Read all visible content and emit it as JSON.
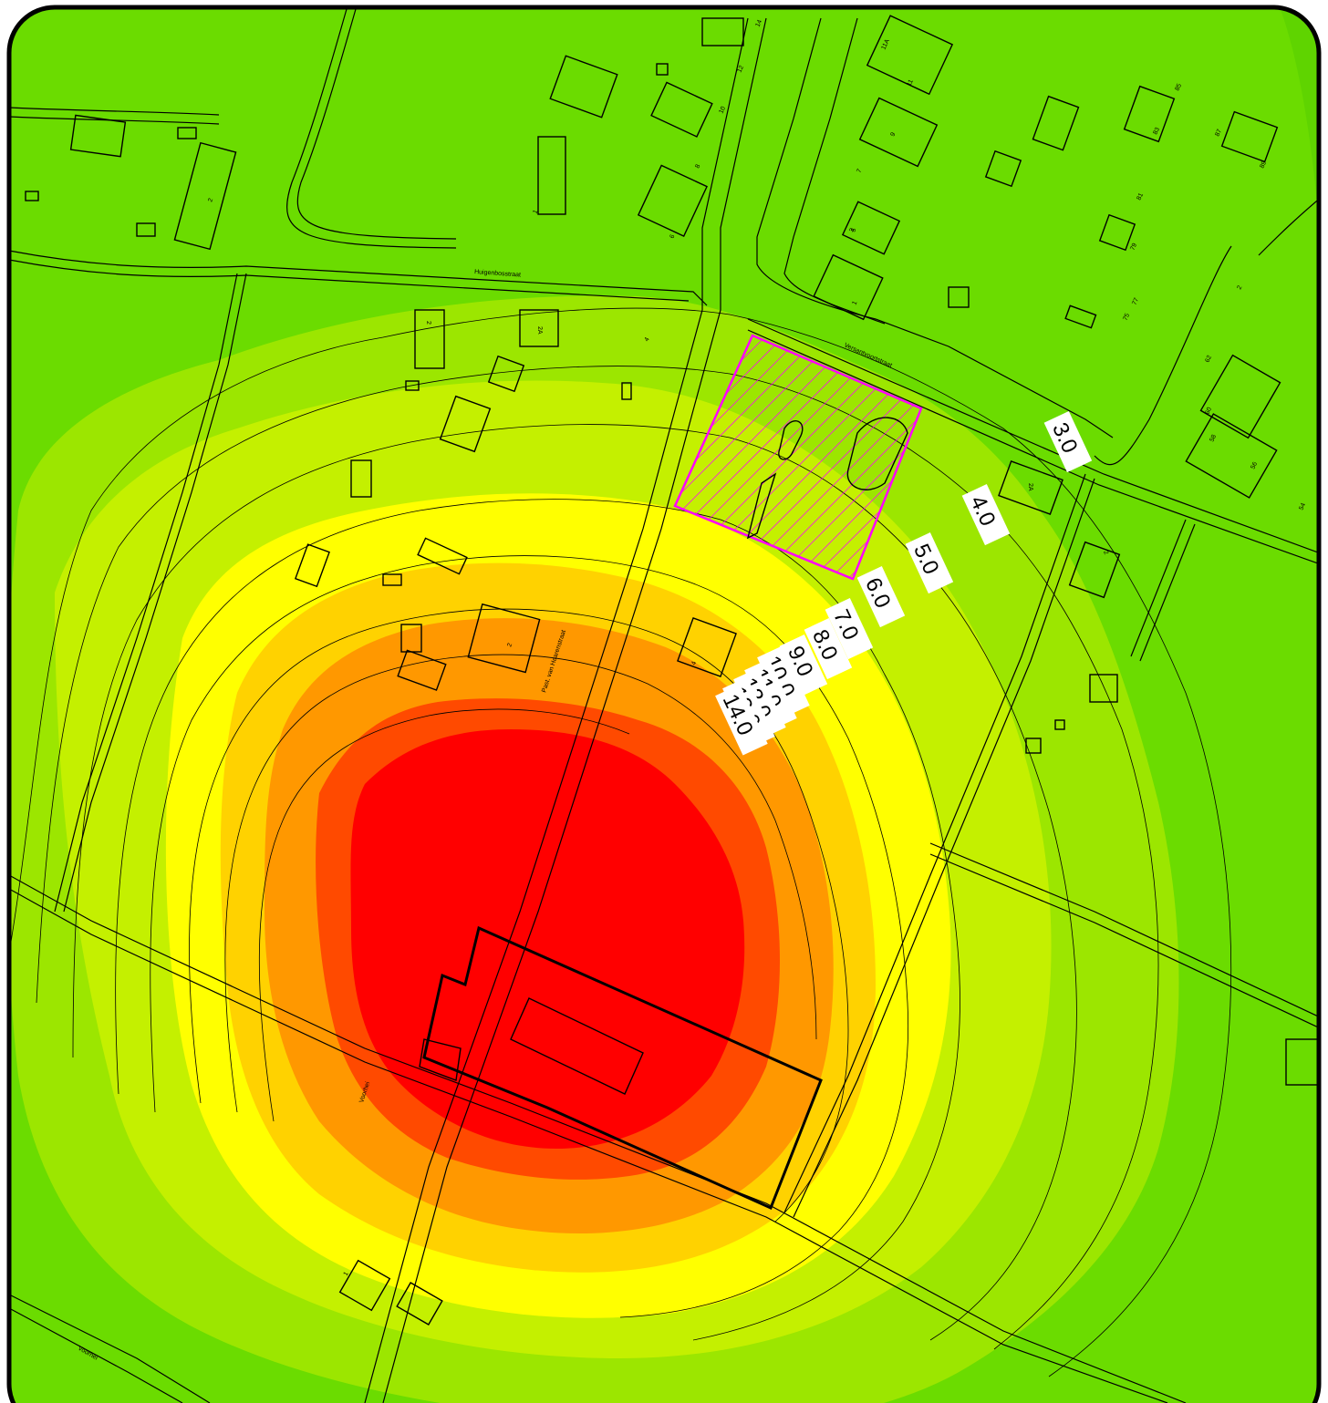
{
  "colors": {
    "frame": "#000000",
    "band_green_dark": "#5fd400",
    "band_green": "#6bdc00",
    "band_green_yellow": "#9ce600",
    "band_yellow_green": "#c4f000",
    "band_yellow": "#ffff00",
    "band_yellow_orange": "#ffd200",
    "band_orange": "#ff9800",
    "band_orange_red": "#ff4a00",
    "band_red": "#ff0000",
    "plan_area_hatch": "#ff00ff"
  },
  "streets": {
    "huigenbosstraat": "Huigenbosstraat",
    "versantvoortstraat": "Versantvoortstraat",
    "past_van_haarenstraat": "Past. van Haarenstraat",
    "voorhei_1": "Voorhei",
    "voorhei_2": "Voorhei"
  },
  "house_numbers": [
    "2",
    "2A",
    "2",
    "4",
    "1",
    "1",
    "3",
    "5",
    "6",
    "7",
    "8",
    "9",
    "10",
    "11",
    "12",
    "14",
    "11A",
    "75",
    "77",
    "79",
    "81",
    "83",
    "85",
    "87",
    "89",
    "2",
    "62",
    "60",
    "58",
    "56",
    "54",
    "2A",
    "2",
    "2",
    "4",
    "1"
  ],
  "contour_labels": [
    "3.0",
    "4.0",
    "5.0",
    "6.0",
    "7.0",
    "8.0",
    "9.0",
    "10.0",
    "11.0",
    "12.0",
    "13.0",
    "14.0"
  ]
}
